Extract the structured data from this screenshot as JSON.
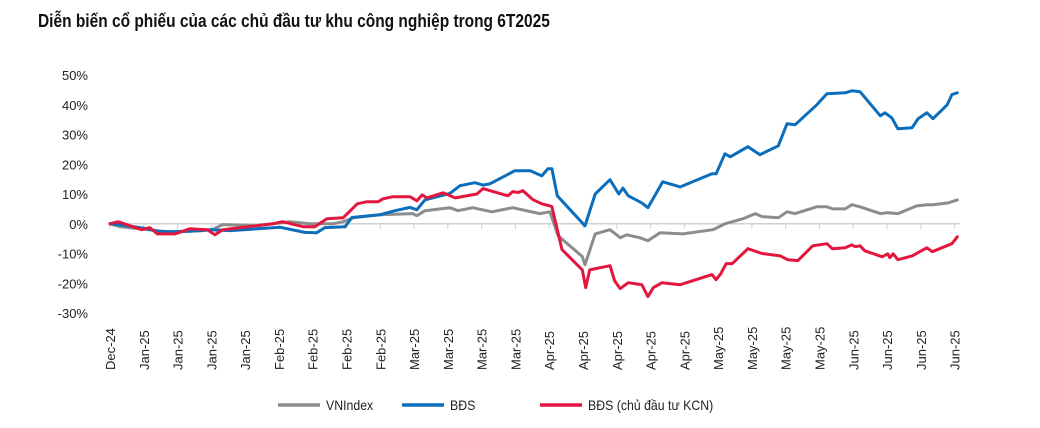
{
  "chart_data": {
    "type": "line",
    "title": "Diễn biến cổ phiếu của các chủ đầu tư khu công nghiệp trong 6T2025",
    "xlabel": "",
    "ylabel": "",
    "x_unit": "trading day index",
    "xlim": [
      0,
      125.5
    ],
    "ylim": [
      -30,
      50
    ],
    "y_ticks": [
      50,
      40,
      30,
      20,
      10,
      0,
      -10,
      -20,
      -30
    ],
    "y_tick_labels": [
      "50%",
      "40%",
      "30%",
      "20%",
      "10%",
      "0%",
      "-10%",
      "-20%",
      "-30%"
    ],
    "x_tick_labels": [
      "Dec-24",
      "Jan-25",
      "Jan-25",
      "Jan-25",
      "Jan-25",
      "Feb-25",
      "Feb-25",
      "Feb-25",
      "Feb-25",
      "Mar-25",
      "Mar-25",
      "Mar-25",
      "Mar-25",
      "Apr-25",
      "Apr-25",
      "Apr-25",
      "Apr-25",
      "Apr-25",
      "May-25",
      "May-25",
      "May-25",
      "May-25",
      "Jun-25",
      "Jun-25",
      "Jun-25",
      "Jun-25"
    ],
    "x_tick_step": 5,
    "grid": false,
    "legend_position": "bottom",
    "series": [
      {
        "name": "VNIndex",
        "color": "#8c8c8c",
        "points": [
          [
            0,
            0
          ],
          [
            1.5,
            -1
          ],
          [
            4.4,
            -1.7
          ],
          [
            8.4,
            -2.7
          ],
          [
            13.3,
            -2.4
          ],
          [
            15.1,
            -2
          ],
          [
            16.7,
            -0.3
          ],
          [
            21.8,
            -0.7
          ],
          [
            24.1,
            0
          ],
          [
            26.6,
            0.7
          ],
          [
            29.6,
            0
          ],
          [
            33,
            0
          ],
          [
            34.5,
            0.7
          ],
          [
            36,
            2
          ],
          [
            39.9,
            3
          ],
          [
            44.8,
            3.4
          ],
          [
            45.4,
            2.7
          ],
          [
            46.6,
            4.4
          ],
          [
            50.3,
            5.4
          ],
          [
            51.5,
            4.4
          ],
          [
            53.7,
            5.4
          ],
          [
            56.5,
            4
          ],
          [
            59.6,
            5.4
          ],
          [
            63.6,
            3.4
          ],
          [
            65.1,
            4
          ],
          [
            66.3,
            -4
          ],
          [
            69.9,
            -11
          ],
          [
            70.3,
            -13.8
          ],
          [
            71.8,
            -3.4
          ],
          [
            74,
            -2
          ],
          [
            75.5,
            -4.7
          ],
          [
            76.5,
            -3.7
          ],
          [
            78.4,
            -4.7
          ],
          [
            79.6,
            -5.7
          ],
          [
            81.4,
            -3
          ],
          [
            84.8,
            -3.4
          ],
          [
            89.2,
            -2
          ],
          [
            89.9,
            -1.3
          ],
          [
            91,
            0
          ],
          [
            93.7,
            1.7
          ],
          [
            95.5,
            3.4
          ],
          [
            96.5,
            2.4
          ],
          [
            98.9,
            2
          ],
          [
            100.2,
            4
          ],
          [
            101.4,
            3.4
          ],
          [
            104.6,
            5.7
          ],
          [
            106.1,
            5.7
          ],
          [
            107,
            5
          ],
          [
            108.8,
            5
          ],
          [
            109.8,
            6.4
          ],
          [
            111,
            5.7
          ],
          [
            114,
            3.4
          ],
          [
            115,
            3.7
          ],
          [
            116.6,
            3.4
          ],
          [
            119.4,
            6
          ],
          [
            120.9,
            6.4
          ],
          [
            121.8,
            6.4
          ],
          [
            124,
            7
          ],
          [
            125.4,
            8
          ]
        ]
      },
      {
        "name": "BĐS",
        "color": "#0a6ebd",
        "points": [
          [
            0,
            0
          ],
          [
            1.9,
            -0.5
          ],
          [
            5,
            -1.5
          ],
          [
            7,
            -2.5
          ],
          [
            8.9,
            -2.7
          ],
          [
            11.8,
            -2.5
          ],
          [
            14.8,
            -2
          ],
          [
            17.8,
            -2.3
          ],
          [
            25.2,
            -1.2
          ],
          [
            28.8,
            -2.9
          ],
          [
            30.6,
            -3
          ],
          [
            31.8,
            -1.3
          ],
          [
            34.8,
            -1
          ],
          [
            35.8,
            2.1
          ],
          [
            39.9,
            3
          ],
          [
            42.2,
            4.4
          ],
          [
            44.4,
            5.5
          ],
          [
            45.4,
            4.7
          ],
          [
            46.6,
            8
          ],
          [
            50.3,
            10.2
          ],
          [
            51.8,
            12.8
          ],
          [
            54,
            13.8
          ],
          [
            55.2,
            13
          ],
          [
            56.2,
            13.4
          ],
          [
            59.9,
            17.8
          ],
          [
            62.2,
            17.8
          ],
          [
            63.9,
            16.1
          ],
          [
            64.8,
            18.5
          ],
          [
            65.4,
            18.5
          ],
          [
            66.2,
            9.4
          ],
          [
            70.3,
            -0.7
          ],
          [
            71.8,
            10
          ],
          [
            74,
            14.8
          ],
          [
            75.3,
            10
          ],
          [
            75.9,
            12
          ],
          [
            76.7,
            9.4
          ],
          [
            78.7,
            7
          ],
          [
            79.6,
            5.4
          ],
          [
            81.8,
            14.1
          ],
          [
            84.4,
            12.4
          ],
          [
            89.1,
            16.8
          ],
          [
            89.7,
            16.8
          ],
          [
            91,
            23.5
          ],
          [
            91.8,
            22.5
          ],
          [
            94.4,
            25.9
          ],
          [
            96.2,
            23.2
          ],
          [
            98.9,
            26.2
          ],
          [
            100.2,
            33.6
          ],
          [
            101.4,
            33.3
          ],
          [
            104.6,
            40
          ],
          [
            106.1,
            43.7
          ],
          [
            108.8,
            44
          ],
          [
            109.8,
            44.7
          ],
          [
            111,
            44.4
          ],
          [
            114,
            36.3
          ],
          [
            114.7,
            37.3
          ],
          [
            115.7,
            35.6
          ],
          [
            116.6,
            31.9
          ],
          [
            118.7,
            32.3
          ],
          [
            119.6,
            35.3
          ],
          [
            120.9,
            37.3
          ],
          [
            121.8,
            35.3
          ],
          [
            123.9,
            40
          ],
          [
            124.6,
            43.4
          ],
          [
            125.4,
            44
          ]
        ]
      },
      {
        "name": "BĐS (chủ đầu tư KCN)",
        "color": "#e3173e",
        "points": [
          [
            0,
            0
          ],
          [
            1.2,
            0.7
          ],
          [
            4.7,
            -2
          ],
          [
            5.9,
            -1.3
          ],
          [
            7,
            -3.4
          ],
          [
            9.6,
            -3.4
          ],
          [
            11.8,
            -1.7
          ],
          [
            14.4,
            -2
          ],
          [
            15.5,
            -3.7
          ],
          [
            16.7,
            -2
          ],
          [
            24.1,
            0
          ],
          [
            25.5,
            0.7
          ],
          [
            28.6,
            -1
          ],
          [
            30.3,
            -1
          ],
          [
            32.1,
            1.7
          ],
          [
            34.5,
            2
          ],
          [
            36.6,
            6.7
          ],
          [
            38,
            7.4
          ],
          [
            39.7,
            7.4
          ],
          [
            40.4,
            8.4
          ],
          [
            41.9,
            9.1
          ],
          [
            44.4,
            9.1
          ],
          [
            45.4,
            7.7
          ],
          [
            46.2,
            9.7
          ],
          [
            46.9,
            8.7
          ],
          [
            49.3,
            10.4
          ],
          [
            51.1,
            8.7
          ],
          [
            54.3,
            10
          ],
          [
            55.2,
            11.8
          ],
          [
            56.7,
            10.8
          ],
          [
            58.9,
            9.4
          ],
          [
            59.6,
            10.8
          ],
          [
            60.4,
            10.5
          ],
          [
            61.1,
            11.1
          ],
          [
            62.6,
            8.1
          ],
          [
            63.9,
            6.7
          ],
          [
            65.1,
            6
          ],
          [
            65.4,
            5.7
          ],
          [
            66.9,
            -8.7
          ],
          [
            69.9,
            -15.5
          ],
          [
            70.4,
            -21.5
          ],
          [
            71,
            -15.5
          ],
          [
            74,
            -14.1
          ],
          [
            74.7,
            -19.2
          ],
          [
            75.5,
            -21.8
          ],
          [
            76.7,
            -19.8
          ],
          [
            78.7,
            -20.5
          ],
          [
            79.6,
            -24.5
          ],
          [
            80.4,
            -21.5
          ],
          [
            81.7,
            -19.8
          ],
          [
            84.4,
            -20.5
          ],
          [
            89.1,
            -17.1
          ],
          [
            89.7,
            -18.8
          ],
          [
            90.4,
            -16.8
          ],
          [
            91.2,
            -13.4
          ],
          [
            92.1,
            -13.4
          ],
          [
            94.4,
            -8.4
          ],
          [
            96.5,
            -10
          ],
          [
            99.2,
            -10.8
          ],
          [
            100.3,
            -12.1
          ],
          [
            101.8,
            -12.4
          ],
          [
            104,
            -7.4
          ],
          [
            106.1,
            -6.7
          ],
          [
            106.9,
            -8.4
          ],
          [
            108.8,
            -8.1
          ],
          [
            109.8,
            -7.1
          ],
          [
            110.3,
            -7.7
          ],
          [
            111,
            -7.4
          ],
          [
            111.7,
            -9.1
          ],
          [
            114.3,
            -11.1
          ],
          [
            115.1,
            -10.1
          ],
          [
            115.4,
            -11.4
          ],
          [
            115.9,
            -10.1
          ],
          [
            116.6,
            -12.1
          ],
          [
            118.7,
            -10.8
          ],
          [
            119.6,
            -9.7
          ],
          [
            120.9,
            -8.1
          ],
          [
            121.7,
            -9.4
          ],
          [
            124.6,
            -6.7
          ],
          [
            125.4,
            -4.4
          ]
        ]
      }
    ]
  }
}
